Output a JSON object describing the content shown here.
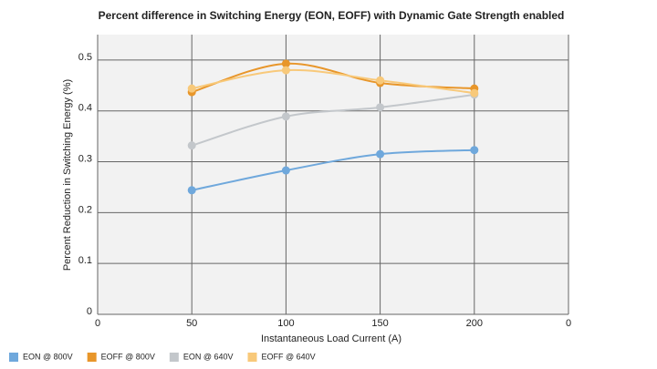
{
  "chart_data": {
    "type": "line",
    "title": "Percent difference in Switching Energy (EON, EOFF) with Dynamic Gate Strength enabled",
    "x_label": "Instantaneous Load Current (A)",
    "y_label": "Percent Reduction in Switching Energy (%)",
    "x": [
      50,
      100,
      150,
      200
    ],
    "series": [
      {
        "name": "EON @ 800V",
        "color": "#6fa8dc",
        "values": [
          0.244,
          0.283,
          0.315,
          0.323
        ]
      },
      {
        "name": "EOFF @ 800V",
        "color": "#e8962a",
        "values": [
          0.437,
          0.493,
          0.455,
          0.444
        ]
      },
      {
        "name": "EON @ 640V",
        "color": "#c3c7cb",
        "values": [
          0.332,
          0.389,
          0.407,
          0.432
        ]
      },
      {
        "name": "EOFF @ 640V",
        "color": "#f8c97a",
        "values": [
          0.444,
          0.48,
          0.46,
          0.435
        ]
      }
    ],
    "xlim": [
      0,
      250
    ],
    "xticks": [
      0,
      50,
      100,
      150,
      200,
      {
        "value": 250,
        "label": "0"
      }
    ],
    "ylim": [
      0,
      0.55
    ],
    "yticks": [
      0,
      0.1,
      0.2,
      0.3,
      0.4,
      0.5
    ],
    "grid": true,
    "smooth": true,
    "legend": "bottom"
  }
}
